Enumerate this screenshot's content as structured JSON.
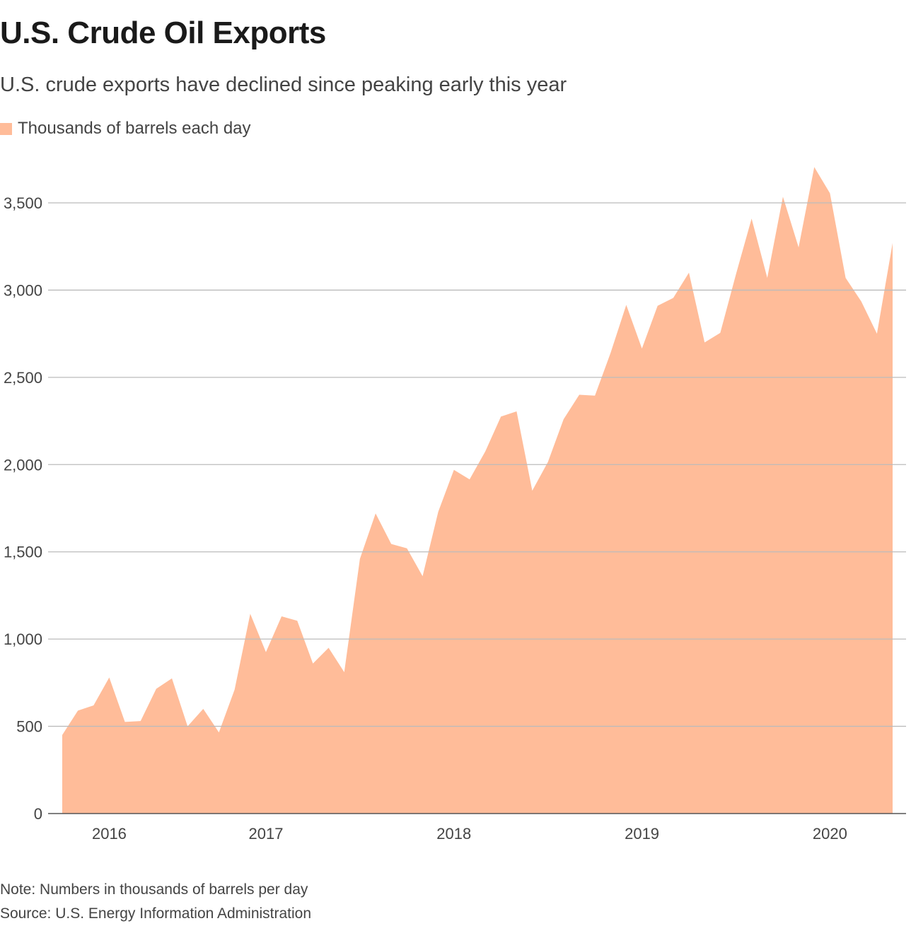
{
  "title": "U.S. Crude Oil Exports",
  "subtitle": "U.S. crude exports have declined since peaking early this year",
  "legend_label": "Thousands of barrels each day",
  "note": "Note: Numbers in thousands of barrels per day",
  "source": "Source: U.S. Energy Information Administration",
  "colors": {
    "area_fill": "#ffbc99",
    "gridline": "#bbbbbb",
    "axis_line": "#555555"
  },
  "chart_data": {
    "type": "area",
    "xlabel": "",
    "ylabel": "",
    "ylim": [
      0,
      3800
    ],
    "y_ticks": [
      {
        "value": 0,
        "label": "0"
      },
      {
        "value": 500,
        "label": "500"
      },
      {
        "value": 1000,
        "label": "1,000"
      },
      {
        "value": 1500,
        "label": "1,500"
      },
      {
        "value": 2000,
        "label": "2,000"
      },
      {
        "value": 2500,
        "label": "2,500"
      },
      {
        "value": 3000,
        "label": "3,000"
      },
      {
        "value": 3500,
        "label": "3,500"
      }
    ],
    "x_ticks": [
      {
        "value": "2016-03",
        "label": "2016"
      },
      {
        "value": "2017-01",
        "label": "2017"
      },
      {
        "value": "2018-01",
        "label": "2018"
      },
      {
        "value": "2019-01",
        "label": "2019"
      },
      {
        "value": "2020-01",
        "label": "2020"
      }
    ],
    "grid": true,
    "legend_position": "top-left",
    "series": [
      {
        "name": "Thousands of barrels each day",
        "points": [
          [
            "2015-12",
            450
          ],
          [
            "2016-01",
            590
          ],
          [
            "2016-02",
            620
          ],
          [
            "2016-03",
            780
          ],
          [
            "2016-04",
            525
          ],
          [
            "2016-05",
            530
          ],
          [
            "2016-06",
            715
          ],
          [
            "2016-07",
            775
          ],
          [
            "2016-08",
            500
          ],
          [
            "2016-09",
            600
          ],
          [
            "2016-10",
            465
          ],
          [
            "2016-11",
            710
          ],
          [
            "2016-12",
            1145
          ],
          [
            "2017-01",
            925
          ],
          [
            "2017-02",
            1130
          ],
          [
            "2017-03",
            1105
          ],
          [
            "2017-04",
            860
          ],
          [
            "2017-05",
            950
          ],
          [
            "2017-06",
            810
          ],
          [
            "2017-07",
            1460
          ],
          [
            "2017-08",
            1720
          ],
          [
            "2017-09",
            1545
          ],
          [
            "2017-10",
            1520
          ],
          [
            "2017-11",
            1360
          ],
          [
            "2017-12",
            1730
          ],
          [
            "2018-01",
            1970
          ],
          [
            "2018-02",
            1915
          ],
          [
            "2018-03",
            2075
          ],
          [
            "2018-04",
            2275
          ],
          [
            "2018-05",
            2305
          ],
          [
            "2018-06",
            1850
          ],
          [
            "2018-07",
            2015
          ],
          [
            "2018-08",
            2260
          ],
          [
            "2018-09",
            2400
          ],
          [
            "2018-10",
            2395
          ],
          [
            "2018-11",
            2640
          ],
          [
            "2018-12",
            2915
          ],
          [
            "2019-01",
            2665
          ],
          [
            "2019-02",
            2910
          ],
          [
            "2019-03",
            2955
          ],
          [
            "2019-04",
            3100
          ],
          [
            "2019-05",
            2700
          ],
          [
            "2019-06",
            2755
          ],
          [
            "2019-07",
            3090
          ],
          [
            "2019-08",
            3410
          ],
          [
            "2019-09",
            3070
          ],
          [
            "2019-10",
            3535
          ],
          [
            "2019-11",
            3245
          ],
          [
            "2019-12",
            3705
          ],
          [
            "2020-01",
            3555
          ],
          [
            "2020-02",
            3070
          ],
          [
            "2020-03",
            2935
          ],
          [
            "2020-04",
            2750
          ],
          [
            "2020-05",
            3270
          ]
        ]
      }
    ]
  }
}
